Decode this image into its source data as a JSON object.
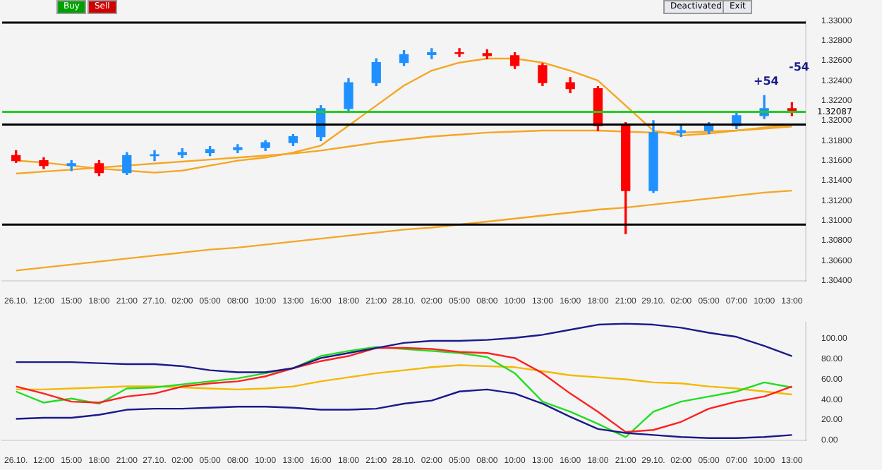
{
  "chart_data": [
    {
      "type": "candlestick",
      "categories": [
        "26.10.",
        "12:00",
        "15:00",
        "18:00",
        "21:00",
        "27.10.",
        "02:00",
        "05:00",
        "08:00",
        "10:00",
        "13:00",
        "16:00",
        "18:00",
        "21:00",
        "28.10.",
        "02:00",
        "05:00",
        "08:00",
        "10:00",
        "13:00",
        "16:00",
        "18:00",
        "21:00",
        "29.10.",
        "02:00",
        "05:00",
        "07:00",
        "10:00",
        "13:00"
      ],
      "series": [
        {
          "type": "candlestick",
          "colors": [
            "#ff0000",
            "#ff0000",
            "#1e90ff",
            "#ff0000",
            "#1e90ff",
            "#1e90ff",
            "#1e90ff",
            "#1e90ff",
            "#1e90ff",
            "#1e90ff",
            "#1e90ff",
            "#1e90ff",
            "#1e90ff",
            "#1e90ff",
            "#1e90ff",
            "#1e90ff",
            "#ff0000",
            "#ff0000",
            "#ff0000",
            "#ff0000",
            "#ff0000",
            "#ff0000",
            "#ff0000",
            "#1e90ff",
            "#1e90ff",
            "#1e90ff",
            "#1e90ff",
            "#1e90ff",
            "#ff0000"
          ],
          "ohlc": [
            [
              1.3165,
              1.317,
              1.3158,
              1.316
            ],
            [
              1.316,
              1.3163,
              1.3152,
              1.3155
            ],
            [
              1.3155,
              1.316,
              1.315,
              1.3157
            ],
            [
              1.3157,
              1.316,
              1.3145,
              1.3148
            ],
            [
              1.3148,
              1.3168,
              1.3146,
              1.3165
            ],
            [
              1.3165,
              1.317,
              1.316,
              1.3166
            ],
            [
              1.3166,
              1.3172,
              1.3163,
              1.3168
            ],
            [
              1.3168,
              1.3174,
              1.3165,
              1.3171
            ],
            [
              1.3171,
              1.3176,
              1.3168,
              1.3173
            ],
            [
              1.3173,
              1.318,
              1.317,
              1.3178
            ],
            [
              1.3178,
              1.3186,
              1.3175,
              1.3184
            ],
            [
              1.3184,
              1.3215,
              1.318,
              1.3212
            ],
            [
              1.3212,
              1.3242,
              1.3208,
              1.3238
            ],
            [
              1.3238,
              1.3262,
              1.3235,
              1.3258
            ],
            [
              1.3258,
              1.327,
              1.3255,
              1.3266
            ],
            [
              1.3266,
              1.3272,
              1.3262,
              1.3268
            ],
            [
              1.3268,
              1.3272,
              1.3264,
              1.3267
            ],
            [
              1.3267,
              1.3271,
              1.3262,
              1.3265
            ],
            [
              1.3265,
              1.3268,
              1.3252,
              1.3255
            ],
            [
              1.3255,
              1.3257,
              1.3235,
              1.3238
            ],
            [
              1.3238,
              1.3243,
              1.3228,
              1.3232
            ],
            [
              1.3232,
              1.3234,
              1.319,
              1.3195
            ],
            [
              1.3195,
              1.3198,
              1.3087,
              1.313
            ],
            [
              1.313,
              1.32,
              1.3128,
              1.3188
            ],
            [
              1.3188,
              1.3195,
              1.3184,
              1.319
            ],
            [
              1.319,
              1.3198,
              1.3187,
              1.3195
            ],
            [
              1.3195,
              1.3208,
              1.3192,
              1.3205
            ],
            [
              1.3205,
              1.3225,
              1.3202,
              1.3212
            ],
            [
              1.3212,
              1.3218,
              1.3205,
              1.3209
            ]
          ]
        },
        {
          "type": "line",
          "color": "#f5a623",
          "values": [
            1.316,
            1.3158,
            1.3155,
            1.3152,
            1.315,
            1.3148,
            1.315,
            1.3155,
            1.316,
            1.3163,
            1.3168,
            1.3175,
            1.3195,
            1.3215,
            1.3235,
            1.325,
            1.3258,
            1.3262,
            1.3262,
            1.3258,
            1.325,
            1.324,
            1.3215,
            1.319,
            1.3185,
            1.3187,
            1.319,
            1.3193,
            1.3196
          ]
        },
        {
          "type": "line",
          "color": "#f5a623",
          "values": [
            1.3147,
            1.3149,
            1.3151,
            1.3153,
            1.3155,
            1.3157,
            1.3159,
            1.3161,
            1.3163,
            1.3165,
            1.3167,
            1.317,
            1.3174,
            1.3178,
            1.3181,
            1.3184,
            1.3186,
            1.3188,
            1.3189,
            1.319,
            1.319,
            1.319,
            1.3189,
            1.3188,
            1.3188,
            1.3189,
            1.319,
            1.3192,
            1.3194
          ]
        },
        {
          "type": "line",
          "color": "#f5a623",
          "values": [
            1.305,
            1.3053,
            1.3056,
            1.3059,
            1.3062,
            1.3065,
            1.3068,
            1.3071,
            1.3073,
            1.3076,
            1.3079,
            1.3082,
            1.3085,
            1.3088,
            1.3091,
            1.3093,
            1.3096,
            1.3099,
            1.3102,
            1.3105,
            1.3108,
            1.3111,
            1.3113,
            1.3116,
            1.3119,
            1.3122,
            1.3125,
            1.3128,
            1.313
          ]
        }
      ],
      "ylim": [
        1.304,
        1.33
      ],
      "yticks": [
        {
          "value": 1.304,
          "label": "1.30400"
        },
        {
          "value": 1.306,
          "label": "1.30600"
        },
        {
          "value": 1.308,
          "label": "1.30800"
        },
        {
          "value": 1.31,
          "label": "1.31000"
        },
        {
          "value": 1.312,
          "label": "1.31200"
        },
        {
          "value": 1.314,
          "label": "1.31400"
        },
        {
          "value": 1.316,
          "label": "1.31600"
        },
        {
          "value": 1.318,
          "label": "1.31800"
        },
        {
          "value": 1.32,
          "label": "1.32000"
        },
        {
          "value": 1.322,
          "label": "1.32200"
        },
        {
          "value": 1.324,
          "label": "1.32400"
        },
        {
          "value": 1.326,
          "label": "1.32600"
        },
        {
          "value": 1.328,
          "label": "1.32800"
        },
        {
          "value": 1.33,
          "label": "1.33000"
        }
      ],
      "ref_lines": [
        {
          "axis": "y",
          "value": 1.3298,
          "color": "#000000"
        },
        {
          "axis": "y",
          "value": 1.3196,
          "color": "#000000"
        },
        {
          "axis": "y",
          "value": 1.3096,
          "color": "#000000"
        },
        {
          "axis": "y",
          "value": 1.32087,
          "label": "1.32087",
          "color": "#22cc22"
        }
      ],
      "annotations": [
        "Buy",
        "Sell",
        "Deactivated",
        "Exit",
        "+54",
        "-54"
      ],
      "grid": false,
      "legend": false
    },
    {
      "type": "line",
      "categories": [
        "26.10.",
        "12:00",
        "15:00",
        "18:00",
        "21:00",
        "27.10.",
        "02:00",
        "05:00",
        "08:00",
        "10:00",
        "13:00",
        "16:00",
        "18:00",
        "21:00",
        "28.10.",
        "02:00",
        "05:00",
        "08:00",
        "10:00",
        "13:00",
        "16:00",
        "18:00",
        "21:00",
        "29.10.",
        "02:00",
        "05:00",
        "07:00",
        "10:00",
        "13:00"
      ],
      "series": [
        {
          "color": "#1a1a8c",
          "values": [
            77,
            77,
            77,
            76,
            75,
            75,
            73,
            69,
            67,
            67,
            71,
            81,
            86,
            91,
            96,
            98,
            98,
            99,
            101,
            104,
            109,
            114,
            115,
            114,
            111,
            106,
            102,
            93,
            83
          ]
        },
        {
          "color": "#1a1a8c",
          "values": [
            21,
            22,
            22,
            25,
            30,
            31,
            31,
            32,
            33,
            33,
            32,
            30,
            30,
            31,
            36,
            39,
            48,
            50,
            46,
            36,
            23,
            11,
            7,
            5,
            3,
            2,
            2,
            3,
            5
          ]
        },
        {
          "color": "#ff2020",
          "values": [
            53,
            46,
            38,
            37,
            43,
            46,
            53,
            56,
            58,
            63,
            71,
            78,
            83,
            91,
            91,
            90,
            87,
            86,
            81,
            66,
            46,
            28,
            8,
            10,
            18,
            31,
            38,
            43,
            53
          ]
        },
        {
          "color": "#22dd22",
          "values": [
            48,
            37,
            41,
            36,
            51,
            52,
            55,
            58,
            61,
            66,
            71,
            83,
            88,
            92,
            90,
            88,
            86,
            82,
            66,
            38,
            28,
            16,
            3,
            28,
            38,
            43,
            48,
            57,
            52
          ]
        },
        {
          "color": "#f5b800",
          "values": [
            50,
            50,
            51,
            52,
            53,
            53,
            52,
            51,
            50,
            51,
            53,
            58,
            62,
            66,
            69,
            72,
            74,
            73,
            72,
            68,
            64,
            62,
            60,
            57,
            56,
            53,
            51,
            48,
            45
          ]
        }
      ],
      "ylim": [
        0,
        116
      ],
      "yticks": [
        {
          "value": 0,
          "label": "0.00"
        },
        {
          "value": 20,
          "label": "20.00"
        },
        {
          "value": 40,
          "label": "40.00"
        },
        {
          "value": 60,
          "label": "60.00"
        },
        {
          "value": 80,
          "label": "80.00"
        },
        {
          "value": 100,
          "label": "100.00"
        }
      ],
      "grid": false,
      "legend": false
    }
  ]
}
